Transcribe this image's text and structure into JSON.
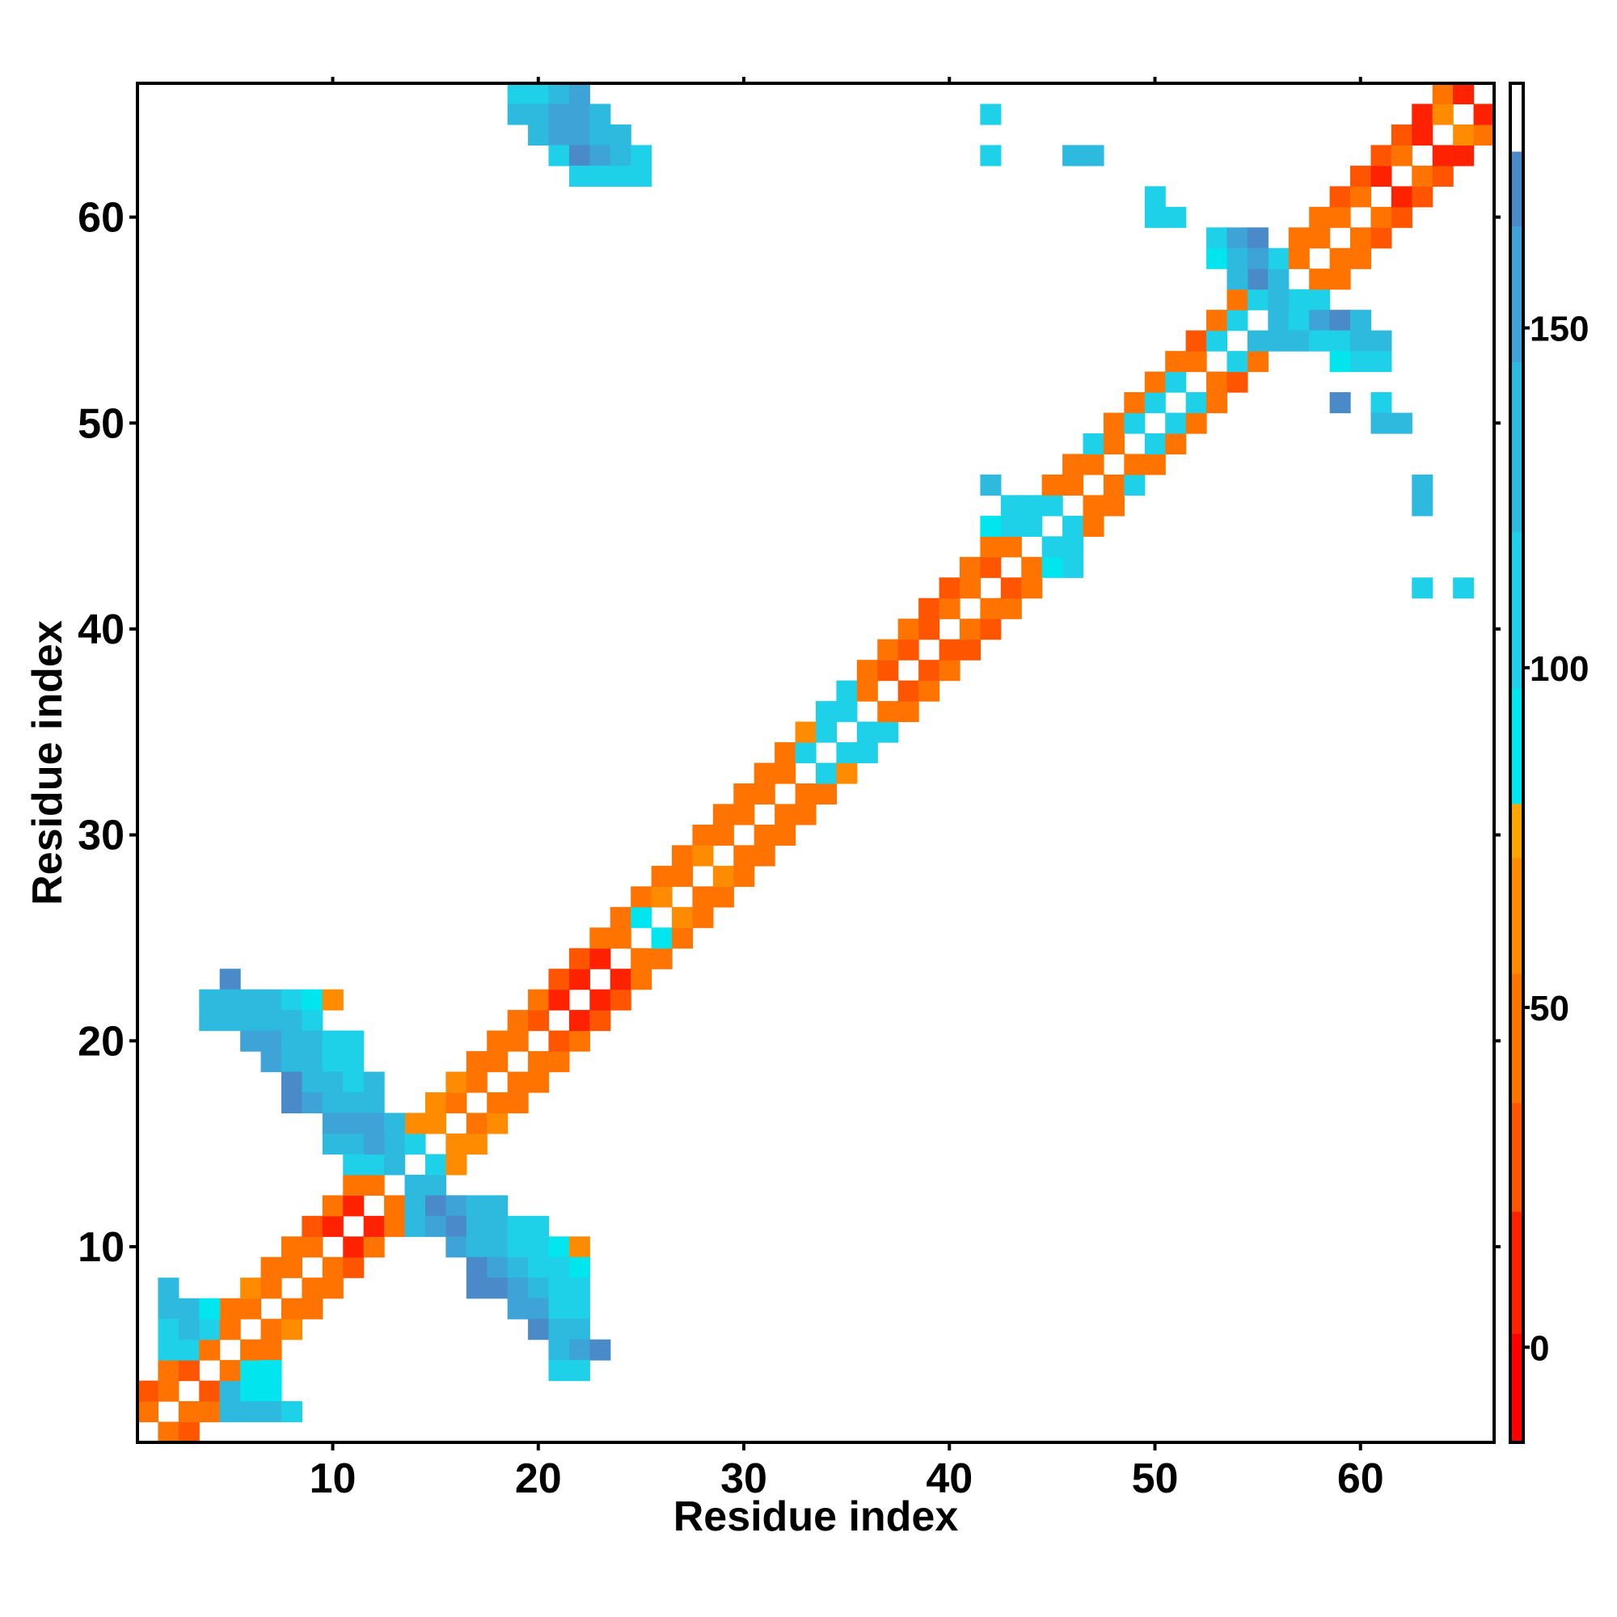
{
  "chart_data": {
    "type": "heatmap",
    "title": "",
    "xlabel": "Residue index",
    "ylabel": "Residue index",
    "xlim": [
      0.5,
      66.5
    ],
    "ylim": [
      0.5,
      66.5
    ],
    "x_ticks": [
      10,
      20,
      30,
      40,
      50,
      60
    ],
    "y_ticks": [
      10,
      20,
      30,
      40,
      50,
      60
    ],
    "colorbar": {
      "range": [
        -14,
        186
      ],
      "ticks": [
        0,
        50,
        100,
        150
      ],
      "bands": [
        {
          "from": -14,
          "to": 2,
          "color": "#ff0000"
        },
        {
          "from": 2,
          "to": 20,
          "color": "#ff2200"
        },
        {
          "from": 20,
          "to": 36,
          "color": "#ff5500"
        },
        {
          "from": 36,
          "to": 55,
          "color": "#ff7300"
        },
        {
          "from": 55,
          "to": 72,
          "color": "#ff8c00"
        },
        {
          "from": 72,
          "to": 80,
          "color": "#ffa500"
        },
        {
          "from": 80,
          "to": 97,
          "color": "#00e5ee"
        },
        {
          "from": 97,
          "to": 120,
          "color": "#1fd1e8"
        },
        {
          "from": 120,
          "to": 145,
          "color": "#2ebadf"
        },
        {
          "from": 145,
          "to": 165,
          "color": "#3ea3d6"
        },
        {
          "from": 165,
          "to": 176,
          "color": "#4a8ac8"
        },
        {
          "from": 176,
          "to": 186,
          "color": "#ffffff"
        }
      ]
    },
    "diagonal_band_values": [
      "2/1:36",
      "1/2:36",
      "3/1:20",
      "1/3:20",
      "3/2:36",
      "2/3:36",
      "4/2:36",
      "2/4:36",
      "4/3:20",
      "3/4:20",
      "5/3:36",
      "3/5:36",
      "5/4:36",
      "4/5:36",
      "6/4:60",
      "4/6:60",
      "6/5:36",
      "5/6:36",
      "7/5:36",
      "5/7:36",
      "7/6:36",
      "6/7:36",
      "8/6:55",
      "6/8:55",
      "8/7:36",
      "7/8:36",
      "9/7:36",
      "7/9:36",
      "9/8:36",
      "8/9:36",
      "10/8:36",
      "8/10:36",
      "10/9:36",
      "9/10:36",
      "11/9:20",
      "9/11:20",
      "11/10:2",
      "10/11:2",
      "12/10:36",
      "10/12:36",
      "12/11:10",
      "11/12:10",
      "13/11:36",
      "11/13:36",
      "13/12:36",
      "12/13:36",
      "14/12:110",
      "12/14:110",
      "14/13:110",
      "13/14:110",
      "15/13:110",
      "13/15:110",
      "15/14:110",
      "14/15:110",
      "16/14:60",
      "14/16:60",
      "16/15:60",
      "15/16:60",
      "17/15:60",
      "15/17:60",
      "17/16:36",
      "16/17:36",
      "18/16:60",
      "16/18:60",
      "18/17:36",
      "17/18:36",
      "19/17:36",
      "17/19:36",
      "19/18:36",
      "18/19:36",
      "20/18:36",
      "18/20:36",
      "20/19:36",
      "19/20:36",
      "21/19:36",
      "19/21:36",
      "21/20:20",
      "20/21:20",
      "22/20:36",
      "20/22:36",
      "22/21:10",
      "21/22:10",
      "23/21:20",
      "21/23:20",
      "23/22:10",
      "22/23:10",
      "24/22:20",
      "22/24:20",
      "24/23:10",
      "23/24:10",
      "25/23:36",
      "23/25:36",
      "25/24:36",
      "24/25:36",
      "26/24:36",
      "24/26:36",
      "26/25:90",
      "25/26:90",
      "27/25:36",
      "25/27:36",
      "27/26:60",
      "26/27:60",
      "28/26:36",
      "26/28:36",
      "28/27:36",
      "27/28:36",
      "29/27:36",
      "27/29:36",
      "29/28:60",
      "28/29:60",
      "30/28:36",
      "28/30:36",
      "30/29:36",
      "29/30:36",
      "31/29:36",
      "29/31:36",
      "31/30:36",
      "30/31:36",
      "32/30:36",
      "30/32:36",
      "32/31:36",
      "31/32:36",
      "33/31:36",
      "31/33:36",
      "33/32:36",
      "32/33:36",
      "34/32:36",
      "32/34:36",
      "34/33:110",
      "33/34:110",
      "35/33:60",
      "33/35:60",
      "35/34:110",
      "34/35:110",
      "36/34:110",
      "34/36:110",
      "36/35:110",
      "35/36:110",
      "37/35:110",
      "35/37:110",
      "37/36:36",
      "36/37:36",
      "38/36:36",
      "36/38:36",
      "38/37:20",
      "37/38:20",
      "39/37:36",
      "37/39:36",
      "39/38:20",
      "38/39:20",
      "40/38:36",
      "38/40:36",
      "40/39:20",
      "39/40:20",
      "41/39:20",
      "39/41:20",
      "41/40:36",
      "40/41:36",
      "42/40:20",
      "40/42:20",
      "42/41:36",
      "41/42:36",
      "43/41:36",
      "41/43:36",
      "43/42:20",
      "42/43:20",
      "44/42:36",
      "42/44:36",
      "44/43:36",
      "43/44:36",
      "45/43:36",
      "43/45:36",
      "45/44:110",
      "44/45:110",
      "46/44:110",
      "44/46:110",
      "46/45:110",
      "45/46:110",
      "47/45:36",
      "45/47:36",
      "47/46:36",
      "46/47:36",
      "48/46:36",
      "46/48:36",
      "48/47:36",
      "47/48:36",
      "49/47:110",
      "47/49:110",
      "49/48:36",
      "48/49:36",
      "50/48:36",
      "48/50:36",
      "50/49:110",
      "49/50:110",
      "51/49:36",
      "49/51:36",
      "51/50:110",
      "50/51:110",
      "52/50:36",
      "50/52:36",
      "52/51:110",
      "51/52:110",
      "53/51:36",
      "51/53:36",
      "53/52:36",
      "52/53:36",
      "54/52:20",
      "52/54:20",
      "54/53:110",
      "53/54:110",
      "55/53:36",
      "53/55:36",
      "55/54:110",
      "54/55:110",
      "56/54:36",
      "54/56:36",
      "56/55:110",
      "55/56:110",
      "57/55:36",
      "55/57:36",
      "57/56:110",
      "56/57:110",
      "58/56:36",
      "56/58:36",
      "58/57:36",
      "57/58:36",
      "59/57:36",
      "57/59:36",
      "59/58:36",
      "58/59:36",
      "60/58:36",
      "58/60:36",
      "60/59:36",
      "59/60:36",
      "61/59:20",
      "59/61:20",
      "61/60:36",
      "60/61:36",
      "62/60:20",
      "60/62:20",
      "62/61:10",
      "61/62:10",
      "63/61:20",
      "61/63:20",
      "63/62:36",
      "62/63:36",
      "64/62:20",
      "62/64:20",
      "64/63:10",
      "63/64:10",
      "65/63:10",
      "63/65:10",
      "65/64:60",
      "64/65:60",
      "66/64:36",
      "64/66:36",
      "66/65:10",
      "65/66:10"
    ],
    "offdiagonal_contact_values": [
      "21/4:120",
      "22/4:120",
      "23/5:165",
      "22/5:140",
      "21/5:140",
      "22/6:140",
      "21/6:140",
      "22/7:130",
      "21/7:130",
      "22/8:110",
      "21/8:120",
      "22/9:90",
      "21/9:110",
      "22/10:60",
      "20/6:155",
      "20/7:155",
      "20/8:140",
      "20/9:120",
      "20/10:110",
      "20/11:110",
      "19/7:155",
      "19/8:140",
      "19/9:130",
      "19/10:110",
      "19/11:110",
      "18/8:165",
      "18/9:140",
      "18/10:130",
      "18/11:110",
      "18/12:120",
      "17/8:165",
      "17/9:155",
      "17/10:130",
      "17/11:130",
      "17/12:120",
      "16/10:155",
      "16/11:155",
      "16/12:155",
      "16/13:130",
      "15/10:120",
      "15/11:130",
      "15/12:145",
      "15/13:120",
      "14/11:110",
      "14/12:110",
      "14/13:120",
      "8/2:130",
      "7/2:120",
      "7/3:130",
      "7/4:90",
      "6/2:110",
      "6/3:130",
      "6/4:110",
      "5/2:110",
      "5/3:110",
      "3/5:130",
      "3/6:90",
      "3/7:90",
      "2/5:120",
      "2/6:130",
      "2/7:120",
      "2/8:110",
      "4/6:90",
      "4/7:90",
      "13/14:120",
      "13/15:120",
      "12/14:120",
      "12/15:165",
      "12/16:155",
      "12/17:130",
      "12/18:130",
      "11/14:130",
      "11/15:155",
      "11/16:165",
      "11/17:140",
      "11/18:140",
      "11/19:110",
      "11/20:110",
      "10/16:155",
      "10/17:140",
      "10/18:130",
      "10/19:110",
      "10/20:110",
      "10/21:90",
      "10/22:60",
      "9/17:165",
      "9/18:145",
      "9/19:130",
      "9/20:110",
      "9/21:110",
      "9/22:90",
      "8/17:165",
      "8/18:165",
      "8/19:145",
      "8/20:130",
      "8/21:110",
      "8/22:110",
      "7/19:155",
      "7/20:145",
      "7/21:110",
      "7/22:110",
      "6/20:165",
      "6/21:130",
      "6/22:130",
      "5/21:130",
      "5/22:155",
      "5/23:165",
      "4/21:110",
      "4/22:110",
      "66/19:110",
      "66/20:110",
      "66/21:130",
      "66/22:145",
      "65/19:120",
      "65/20:130",
      "65/21:145",
      "65/22:145",
      "65/23:130",
      "64/20:130",
      "64/21:145",
      "64/22:145",
      "64/23:130",
      "64/24:130",
      "63/21:110",
      "63/22:165",
      "63/23:145",
      "63/24:130",
      "63/25:110",
      "62/22:110",
      "62/23:110",
      "62/24:110",
      "62/25:110",
      "65/42:110",
      "63/42:110",
      "63/46:120",
      "63/47:140",
      "61/50:110",
      "60/50:110",
      "60/51:110",
      "59/53:110",
      "59/54:145",
      "59/55:165",
      "58/53:90",
      "58/54:130",
      "58/55:145",
      "58/56:110",
      "57/54:130",
      "57/55:165",
      "57/56:120",
      "56/55:110",
      "56/56:120",
      "56/58:110",
      "55/56:140",
      "55/57:110",
      "55/58:145",
      "55/59:165",
      "55/60:140",
      "54/55:120",
      "54/56:130",
      "54/57:120",
      "54/58:110",
      "54/59:110",
      "54/60:130",
      "54/61:130",
      "53/59:90",
      "53/60:110",
      "53/61:110",
      "51/59:165",
      "51/61:110",
      "50/61:130",
      "50/62:130",
      "47/63:130",
      "46/63:130",
      "42/63:110",
      "42/65:110",
      "47/42:120",
      "46/43:110",
      "46/44:110",
      "45/42:90",
      "45/43:110",
      "44/45:110",
      "44/46:110",
      "43/45:90",
      "43/46:110"
    ]
  }
}
